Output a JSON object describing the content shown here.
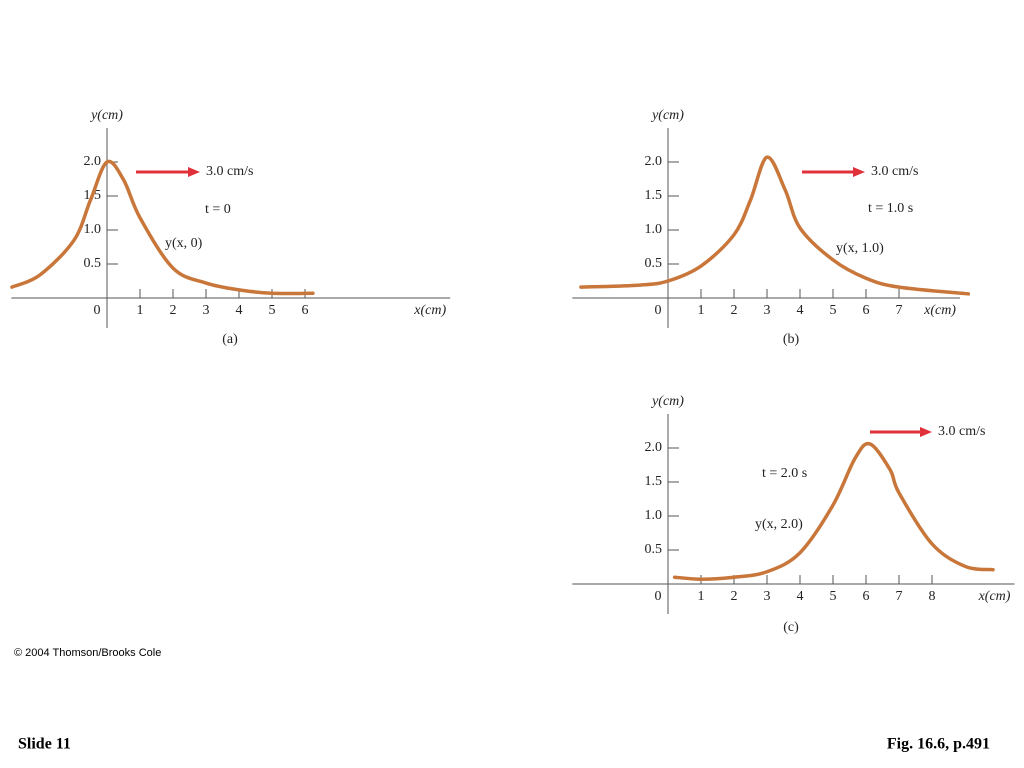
{
  "chart_data": [
    {
      "type": "line",
      "x_label": "x(cm)",
      "y_label": "y(cm)",
      "caption": "(a)",
      "speed_label": "3.0 cm/s",
      "time_label": "t = 0",
      "curve_label": "y(x, 0)",
      "color": "#c8763a",
      "arrow_color": "#e0303a",
      "x": [
        -2.88,
        -2.03,
        -1,
        -0.5,
        0,
        0.5,
        1,
        2,
        3,
        4,
        5,
        6.24
      ],
      "values": [
        0.16,
        0.34,
        0.85,
        1.44,
        2.0,
        1.74,
        1.18,
        0.44,
        0.22,
        0.12,
        0.07,
        0.07
      ],
      "xlim": [
        -2.9,
        10.4
      ],
      "ylim": [
        0,
        2.5
      ],
      "xticks": [
        0,
        1,
        2,
        3,
        4,
        5,
        6
      ],
      "yticks": [
        0.5,
        {
          "value": 1,
          "label": "1.0"
        },
        1.5,
        {
          "value": 2,
          "label": "2.0"
        }
      ]
    },
    {
      "type": "line",
      "x_label": "x(cm)",
      "y_label": "y(cm)",
      "caption": "(b)",
      "speed_label": "3.0 cm/s",
      "time_label": "t = 1.0 s",
      "curve_label": "y(x, 1.0)",
      "color": "#c8763a",
      "arrow_color": "#e0303a",
      "x": [
        -2.64,
        -0.85,
        0,
        1,
        2,
        2.5,
        3,
        3.55,
        4,
        5,
        6,
        7,
        9.1
      ],
      "values": [
        0.16,
        0.19,
        0.25,
        0.47,
        0.93,
        1.44,
        2.07,
        1.59,
        1.03,
        0.56,
        0.29,
        0.16,
        0.06
      ],
      "xlim": [
        -2.9,
        8.85
      ],
      "ylim": [
        0,
        2.5
      ],
      "xticks": [
        0,
        1,
        2,
        3,
        4,
        5,
        6,
        7
      ],
      "yticks": [
        0.5,
        {
          "value": 1,
          "label": "1.0"
        },
        1.5,
        {
          "value": 2,
          "label": "2.0"
        }
      ]
    },
    {
      "type": "line",
      "x_label": "x(cm)",
      "y_label": "y(cm)",
      "caption": "(c)",
      "speed_label": "3.0 cm/s",
      "time_label": "t = 2.0 s",
      "curve_label": "y(x, 2.0)",
      "color": "#c8763a",
      "arrow_color": "#e0303a",
      "x": [
        0.2,
        1,
        2,
        3,
        4,
        5,
        5.67,
        6.12,
        6.73,
        7,
        8,
        9,
        9.85
      ],
      "values": [
        0.1,
        0.07,
        0.1,
        0.18,
        0.46,
        1.16,
        1.85,
        2.06,
        1.68,
        1.34,
        0.59,
        0.26,
        0.21
      ],
      "xlim": [
        -2.9,
        10.5
      ],
      "ylim": [
        0,
        2.5
      ],
      "xticks": [
        0,
        1,
        2,
        3,
        4,
        5,
        6,
        7,
        8
      ],
      "yticks": [
        0.5,
        {
          "value": 1,
          "label": "1.0"
        },
        1.5,
        {
          "value": 2,
          "label": "2.0"
        }
      ]
    }
  ],
  "footer": {
    "copyright": "© 2004 Thomson/Brooks Cole",
    "slide": "Slide 11",
    "figure": "Fig. 16.6, p.491"
  }
}
